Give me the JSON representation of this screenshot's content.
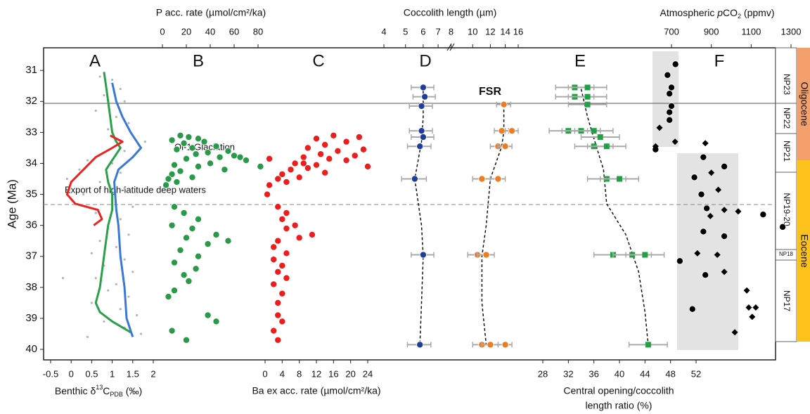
{
  "chart_data": {
    "type": "panels",
    "ylabel": "Age (Ma)",
    "ylim": [
      30.27,
      40.34
    ],
    "y_inverted": true,
    "yticks": [
      31,
      32,
      33,
      34,
      35,
      36,
      37,
      38,
      39,
      40
    ],
    "annotations": {
      "glaciation": "Oi-1 Glaciation",
      "export": "Export of high-latitude deep waters",
      "fsr": "FSR"
    },
    "zones": [
      "NP23",
      "NP22",
      "NP21",
      "NP19-20",
      "NP18",
      "NP17"
    ],
    "epochs": [
      "Oligocene",
      "Eocene"
    ],
    "panels": [
      {
        "letter": "A",
        "axis_side": "bottom",
        "xlim": [
          -0.5,
          2
        ],
        "xticks": [
          -0.5,
          0,
          0.5,
          1,
          1.5,
          2
        ],
        "xlabel": [
          {
            "text": "Benthic δ"
          },
          {
            "text": "13",
            "shift": "super"
          },
          {
            "text": "C"
          },
          {
            "text": "PDB",
            "shift": "sub"
          },
          {
            "text": " (‰)"
          }
        ],
        "series": [
          {
            "type": "scatter",
            "marker": "dot",
            "color": "#b5b5b5",
            "x": [
              0.7,
              1.0,
              1.2,
              0.8,
              1.3,
              0.6,
              1.1,
              1.4,
              0.9,
              1.5,
              1.8,
              1.3,
              0.4,
              1.0,
              0.2,
              1.2,
              -0.1,
              0.7,
              1.3,
              0.3,
              1.0,
              1.5,
              0.6,
              1.2,
              0.9,
              1.4,
              0.7,
              1.1,
              0.5,
              1.3,
              0.8,
              1.5,
              0.6,
              -0.2,
              1.1,
              0.9,
              1.4,
              0.5,
              1.2,
              1.6,
              0.8,
              1.3,
              1.7,
              0.4
            ],
            "y": [
              31.2,
              31.3,
              31.6,
              31.8,
              32.0,
              32.3,
              32.5,
              32.7,
              32.9,
              33.1,
              33.3,
              33.6,
              33.9,
              34.0,
              34.2,
              34.3,
              34.5,
              34.6,
              34.8,
              35.0,
              35.2,
              35.4,
              35.6,
              35.8,
              36.1,
              36.3,
              36.5,
              36.7,
              36.9,
              37.1,
              37.3,
              37.5,
              37.7,
              37.7,
              37.9,
              38.1,
              38.3,
              38.5,
              38.7,
              38.9,
              39.1,
              39.3,
              39.5,
              39.6
            ]
          },
          {
            "type": "line",
            "color": "#2aa04a",
            "x": [
              0.8,
              0.85,
              0.9,
              0.95,
              1.0,
              1.1,
              1.2,
              1.05,
              0.85,
              0.9,
              1.0,
              1.0,
              0.9,
              0.85,
              0.8,
              0.75,
              0.7,
              0.6,
              0.7,
              1.0,
              1.45
            ],
            "y": [
              31.05,
              31.5,
              32.0,
              32.5,
              33.0,
              33.3,
              33.5,
              33.8,
              34.2,
              34.6,
              35.0,
              35.5,
              36.0,
              36.5,
              37.0,
              37.5,
              38.0,
              38.5,
              38.8,
              39.1,
              39.45
            ]
          },
          {
            "type": "line",
            "color": "#3a78d6",
            "x": [
              1.0,
              1.1,
              1.25,
              1.45,
              1.7,
              1.5,
              1.15,
              1.05,
              1.1,
              1.15,
              1.2,
              1.3,
              1.35,
              1.5
            ],
            "y": [
              31.4,
              32.0,
              32.5,
              33.0,
              33.5,
              33.8,
              34.2,
              34.6,
              35.5,
              36.0,
              37.0,
              38.0,
              39.0,
              39.6
            ]
          },
          {
            "type": "line",
            "color": "#ee2222",
            "x": [
              0.95,
              1.25,
              1.0,
              0.6,
              0.3,
              0.0,
              -0.1,
              0.1,
              0.65,
              0.75,
              0.55
            ],
            "y": [
              33.1,
              33.3,
              33.5,
              33.8,
              34.2,
              34.6,
              35.0,
              35.3,
              35.5,
              35.8,
              36.0
            ]
          }
        ]
      },
      {
        "letter": "B",
        "axis_side": "top",
        "xlim": [
          0,
          80
        ],
        "xticks": [
          0,
          20,
          40,
          60,
          80
        ],
        "xlabel": "P acc. rate (µmol/cm²/ka)",
        "series": [
          {
            "type": "scatter",
            "marker": "circle",
            "color": "#2a9a4a",
            "x": [
              15,
              22,
              30,
              8,
              35,
              18,
              45,
              25,
              12,
              55,
              38,
              28,
              60,
              48,
              20,
              70,
              40,
              10,
              30,
              52,
              15,
              8,
              25,
              5,
              12,
              3,
              82,
              65,
              10,
              18,
              30,
              8,
              25,
              45,
              20,
              38,
              55,
              15,
              30,
              10,
              28,
              18,
              22,
              10,
              5,
              38,
              45,
              8,
              20
            ],
            "y": [
              33.1,
              33.15,
              33.2,
              33.25,
              33.3,
              33.35,
              33.45,
              33.5,
              33.55,
              33.6,
              33.65,
              33.7,
              33.75,
              33.8,
              33.85,
              33.9,
              34.0,
              34.05,
              34.1,
              34.2,
              34.25,
              34.35,
              34.45,
              34.5,
              34.6,
              34.7,
              34.1,
              33.8,
              35.4,
              35.6,
              35.8,
              36.0,
              36.1,
              36.3,
              36.4,
              36.6,
              36.5,
              36.8,
              37.0,
              37.2,
              37.4,
              37.6,
              37.8,
              38.1,
              38.3,
              38.9,
              39.1,
              39.4,
              39.7
            ]
          }
        ]
      },
      {
        "letter": "C",
        "axis_side": "bottom",
        "xlim": [
          0,
          24
        ],
        "xticks": [
          0,
          4,
          8,
          12,
          16,
          20,
          24
        ],
        "xlabel": "Ba ex acc. rate (µmol/cm²/ka)",
        "series": [
          {
            "type": "scatter",
            "marker": "circle",
            "color": "#ee1c1c",
            "x": [
              16,
              22,
              12,
              19,
              14,
              10,
              23,
              17,
              13,
              21,
              9,
              15,
              19,
              7,
              12,
              24,
              10,
              6,
              14,
              4,
              8,
              3,
              5,
              1,
              1,
              9,
              0.5,
              3,
              5,
              4,
              7,
              5,
              11,
              8,
              3,
              2,
              5,
              2,
              4,
              3,
              5,
              2,
              4,
              3,
              3,
              4,
              2,
              3
            ],
            "y": [
              33.1,
              33.15,
              33.2,
              33.3,
              33.4,
              33.5,
              33.55,
              33.6,
              33.7,
              33.75,
              33.8,
              33.85,
              33.9,
              34.0,
              34.05,
              34.1,
              34.15,
              34.2,
              34.3,
              34.35,
              34.45,
              34.5,
              34.6,
              34.7,
              33.85,
              34.0,
              35.0,
              35.4,
              35.6,
              35.8,
              36.0,
              36.1,
              36.3,
              36.4,
              36.5,
              36.7,
              36.9,
              37.1,
              37.3,
              37.5,
              37.7,
              37.9,
              38.2,
              38.5,
              38.9,
              39.1,
              39.4,
              39.7
            ]
          }
        ]
      },
      {
        "letter": "D",
        "axis_side": "top",
        "xlog": true,
        "xlim": [
          4,
          16
        ],
        "xticks": [
          4,
          5,
          6,
          7,
          8,
          10,
          12,
          14,
          16
        ],
        "xlabel": "Coccolith length (µm)",
        "series": [
          {
            "type": "line",
            "dash": true,
            "color": "#111",
            "x": [
              6.0,
              6.0,
              5.9,
              5.5,
              5.9,
              6.0,
              5.9,
              5.8
            ],
            "y": [
              31.5,
              32.5,
              33.3,
              34.5,
              36.0,
              37.0,
              38.5,
              39.85
            ]
          },
          {
            "type": "line",
            "dash": true,
            "color": "#111",
            "x": [
              13.8,
              13.8,
              13.5,
              12.0,
              11.5,
              11.0,
              11.0,
              11.5
            ],
            "y": [
              32.1,
              32.95,
              33.45,
              34.5,
              36.0,
              37.0,
              38.5,
              39.85
            ]
          },
          {
            "type": "scatter",
            "marker": "circle",
            "color": "#1f3d99",
            "xerr": 0.7,
            "x": [
              6.0,
              6.1,
              5.9,
              5.9,
              6.0,
              5.8,
              5.5,
              6.0,
              5.8
            ],
            "y": [
              31.55,
              31.85,
              32.15,
              32.95,
              33.15,
              33.45,
              34.5,
              36.95,
              39.85
            ]
          },
          {
            "type": "scatter",
            "marker": "circle",
            "color": "#f07c21",
            "xerr": 1.0,
            "x": [
              13.8,
              13.5,
              15.0,
              13.0,
              14.0,
              11.0,
              13.0,
              10.5,
              11.5,
              11.0,
              12.0,
              14.0
            ],
            "y": [
              32.1,
              32.95,
              32.95,
              33.45,
              33.45,
              34.5,
              34.5,
              36.95,
              36.95,
              39.85,
              39.85,
              39.85
            ]
          }
        ]
      },
      {
        "letter": "E",
        "axis_side": "bottom",
        "xlim": [
          28,
          52
        ],
        "xticks": [
          28,
          32,
          36,
          40,
          44,
          48,
          52
        ],
        "xlabel": "Central opening/coccolith",
        "xlabel_2": "length ratio (%)",
        "series": [
          {
            "type": "line",
            "dash": true,
            "color": "#111",
            "x": [
              34,
              35,
              36,
              37.5,
              38,
              41,
              43,
              44,
              44.5
            ],
            "y": [
              31.6,
              32.5,
              33.2,
              34.2,
              35.3,
              36.3,
              37.5,
              38.8,
              39.85
            ]
          },
          {
            "type": "scatter",
            "marker": "square",
            "color": "#22a045",
            "xerr": 3,
            "x": [
              33,
              35,
              33,
              35,
              35,
              32,
              34,
              36,
              37,
              36,
              38,
              38,
              40,
              39,
              42,
              44,
              44.5
            ],
            "y": [
              31.55,
              31.55,
              31.85,
              31.85,
              32.1,
              32.95,
              32.95,
              32.95,
              33.15,
              33.45,
              33.45,
              34.5,
              34.5,
              36.95,
              36.95,
              36.95,
              39.85
            ]
          }
        ]
      },
      {
        "letter": "F",
        "axis_side": "top",
        "xlim": [
          700,
          1300
        ],
        "xticks": [
          700,
          900,
          1100,
          1300
        ],
        "xlabel": [
          {
            "text": "Atmospheric "
          },
          {
            "text": "p",
            "style": "italic"
          },
          {
            "text": "CO"
          },
          {
            "text": "2",
            "shift": "sub"
          },
          {
            "text": " (ppmv)"
          }
        ],
        "series": [
          {
            "type": "scatter",
            "marker": "circle",
            "color": "#000",
            "x": [
              720,
              680,
              700,
              690,
              700,
              690,
              690,
              620,
              860,
              815,
              965,
              850,
              877,
              1160,
              1258,
              860,
              965,
              742,
              870,
              805
            ],
            "y": [
              30.8,
              31.15,
              31.55,
              31.75,
              32.15,
              32.35,
              32.6,
              33.55,
              33.8,
              34.45,
              34.1,
              35.0,
              35.45,
              35.65,
              36.05,
              36.2,
              36.35,
              37.15,
              37.6,
              38.7
            ]
          },
          {
            "type": "scatter",
            "marker": "diamond",
            "color": "#000",
            "x": [
              640,
              718,
              620,
              870,
              900,
              935,
              965,
              1035,
              895,
              830,
              930,
              965,
              1078,
              1088,
              1123,
              1105,
              1018
            ],
            "y": [
              32.85,
              33.3,
              33.45,
              33.35,
              34.3,
              34.85,
              35.5,
              35.55,
              35.7,
              36.9,
              36.95,
              37.5,
              38.1,
              38.65,
              38.65,
              38.95,
              39.45
            ]
          }
        ]
      }
    ]
  }
}
